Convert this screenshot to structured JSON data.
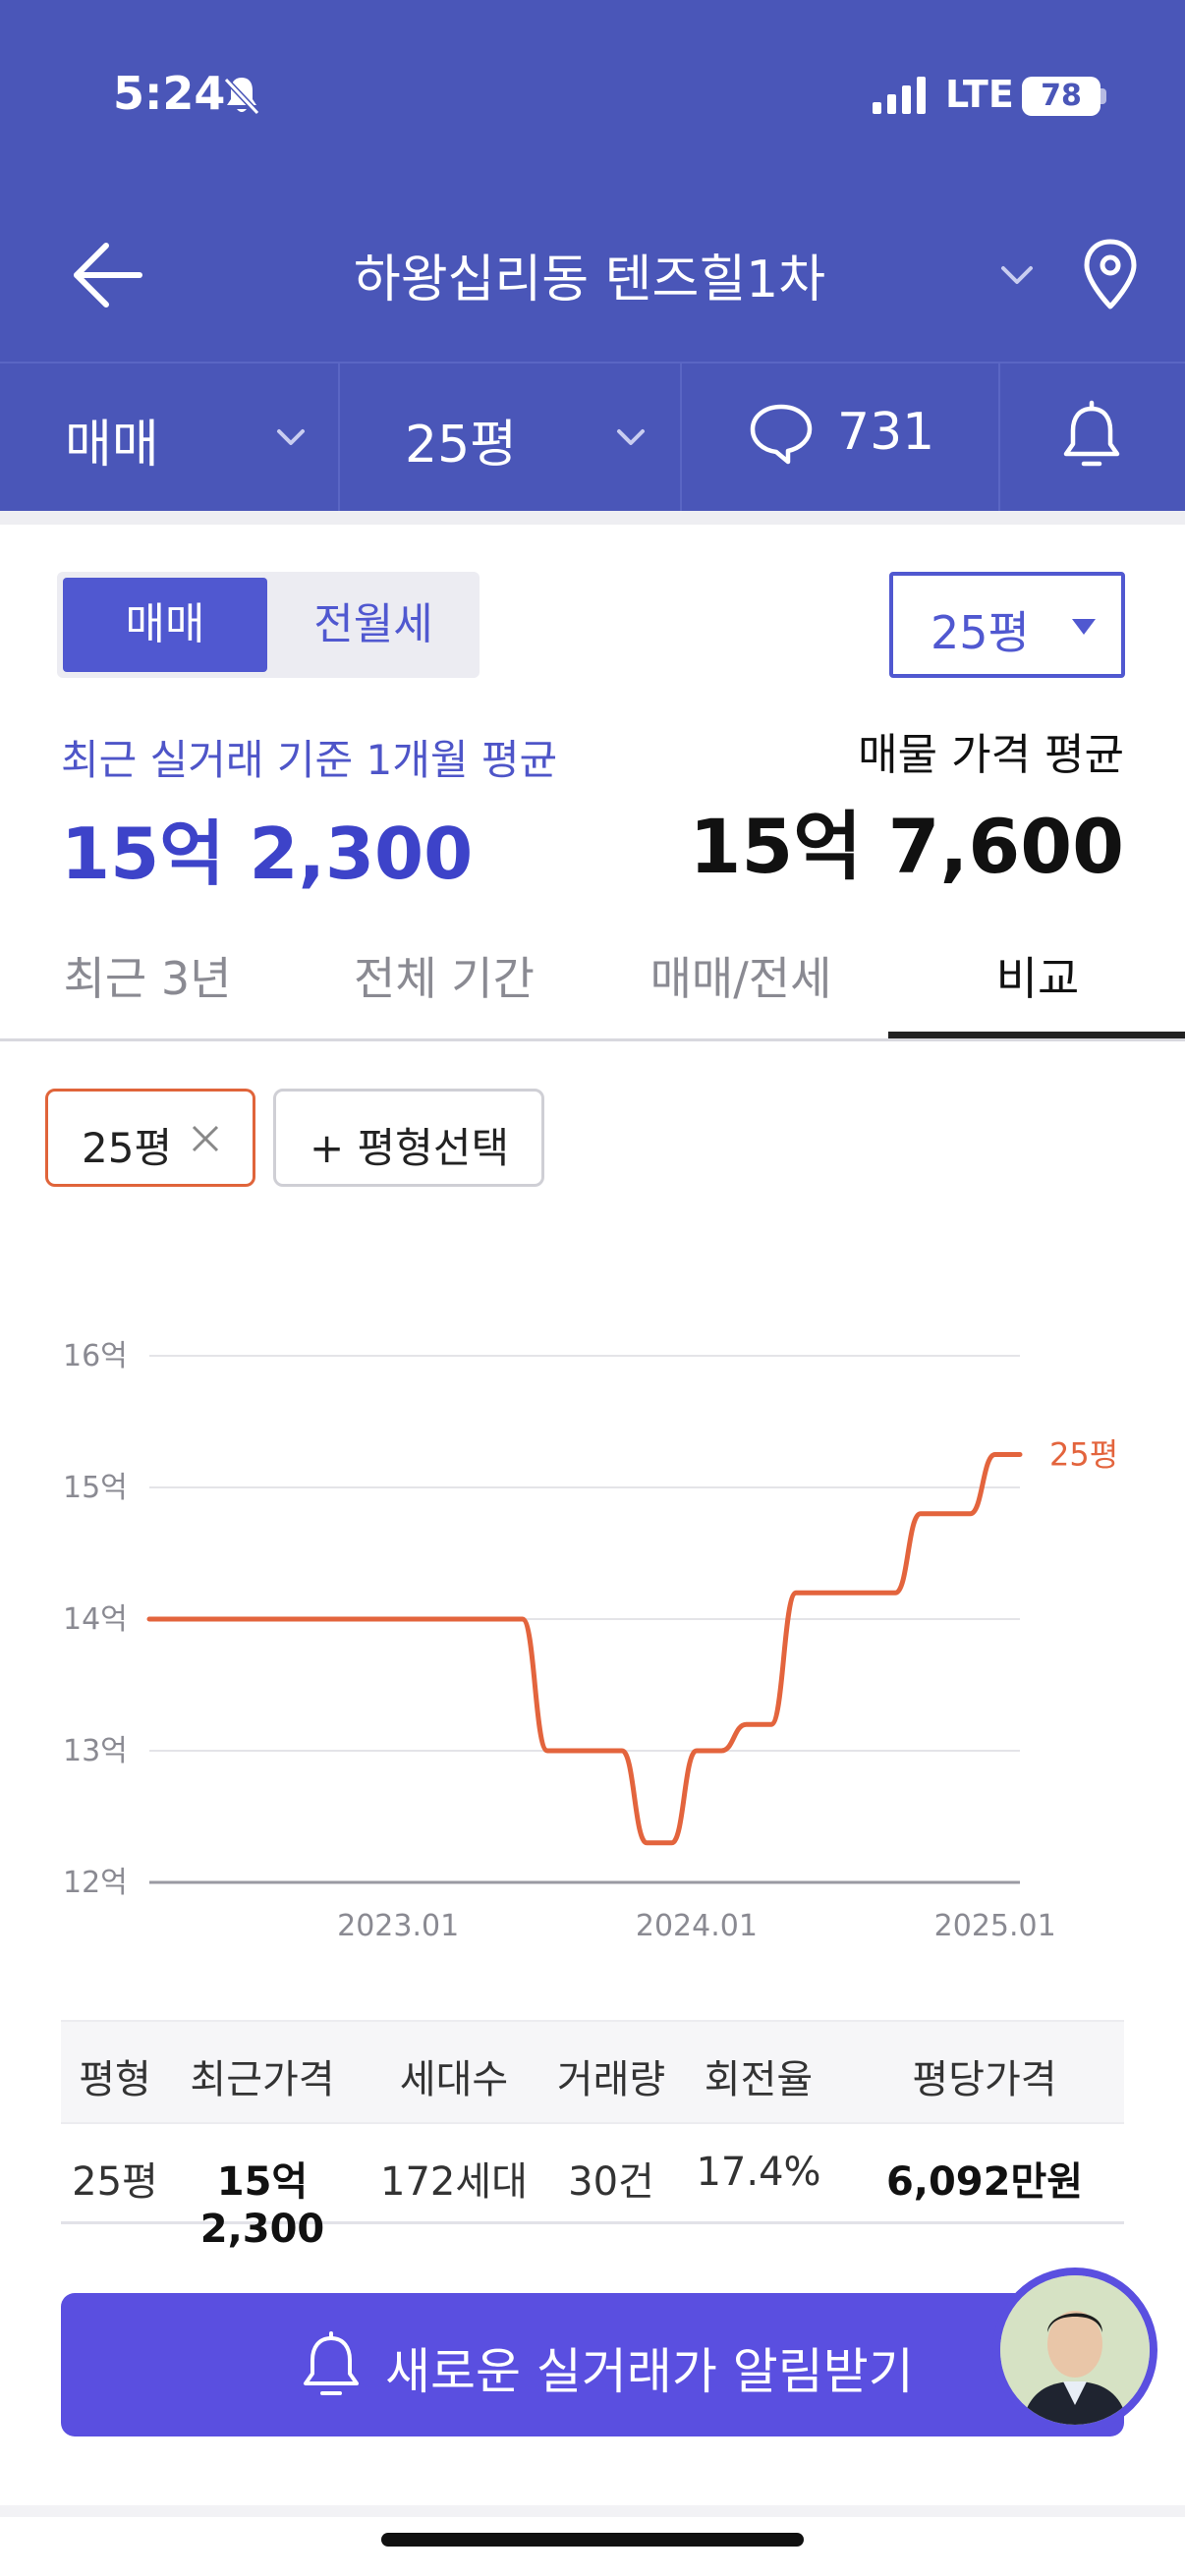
{
  "status_bar": {
    "time": "5:24",
    "network": "LTE",
    "battery": "78"
  },
  "header": {
    "title": "하왕십리동 텐즈힐1차"
  },
  "filters": {
    "trade": "매매",
    "size": "25평",
    "comments": "731"
  },
  "toggle": {
    "active": "매매",
    "inactive": "전월세"
  },
  "size_select": {
    "value": "25평"
  },
  "averages": {
    "recent_label": "최근 실거래 기준 1개월 평균",
    "recent_value": "15억 2,300",
    "listing_label": "매물 가격 평균",
    "listing_value": "15억 7,600"
  },
  "period_tabs": [
    {
      "label": "최근 3년"
    },
    {
      "label": "전체 기간"
    },
    {
      "label": "매매/전세"
    },
    {
      "label": "비교"
    }
  ],
  "chips": {
    "size_chip": "25평",
    "add_chip": "+ 평형선택"
  },
  "chart_data": {
    "type": "line",
    "x": [
      "2022.03",
      "2022.06",
      "2022.09",
      "2022.12",
      "2023.03",
      "2023.06",
      "2023.07",
      "2023.09",
      "2023.10",
      "2023.11",
      "2023.12",
      "2024.01",
      "2024.02",
      "2024.03",
      "2024.04",
      "2024.05",
      "2024.06",
      "2024.08",
      "2024.09",
      "2024.10",
      "2024.12",
      "2025.01",
      "2025.02"
    ],
    "series": [
      {
        "name": "25평",
        "values": [
          14.0,
          14.0,
          14.0,
          14.0,
          14.0,
          14.0,
          13.0,
          13.0,
          13.0,
          12.3,
          12.3,
          13.0,
          13.0,
          13.2,
          13.2,
          14.2,
          14.2,
          14.2,
          14.2,
          14.8,
          14.8,
          15.25,
          15.25
        ]
      }
    ],
    "yticks": [
      "12억",
      "13억",
      "14억",
      "15억",
      "16억"
    ],
    "xticks": [
      "2023.01",
      "2024.01",
      "2025.01"
    ],
    "ylim": [
      12,
      16
    ],
    "grid": true,
    "color": "#e3643d"
  },
  "table": {
    "headers": [
      "평형",
      "최근가격",
      "세대수",
      "거래량",
      "회전율",
      "평당가격"
    ],
    "row": [
      "25평",
      "15억2,300",
      "172세대",
      "30건",
      "17.4%",
      "6,092만원"
    ]
  },
  "cta": {
    "label": "새로운 실거래가 알림받기"
  },
  "colors": {
    "primary": "#4a56b8",
    "accent": "#5058d0",
    "series": "#e3643d",
    "cta": "#5a4fe0"
  },
  "icons": [
    "bell-slash-icon",
    "signal-icon",
    "back-arrow-icon",
    "chevron-down-icon",
    "location-pin-icon",
    "speech-bubble-icon",
    "bell-icon",
    "caret-down-icon",
    "close-icon"
  ]
}
